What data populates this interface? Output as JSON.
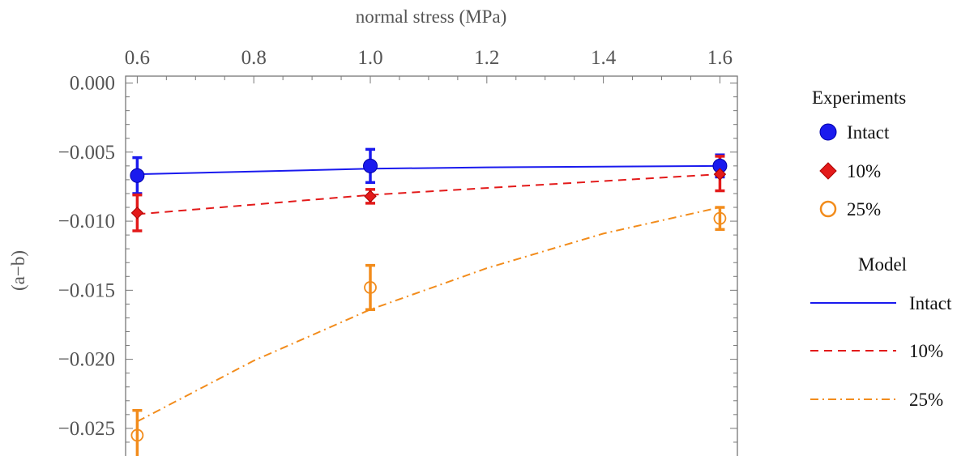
{
  "chart_data": {
    "type": "scatter",
    "xlabel": "normal stress (MPa)",
    "ylabel": "(a−b)",
    "xlim": [
      0.58,
      1.63
    ],
    "ylim": [
      -0.027,
      0.0005
    ],
    "x_ticks": [
      0.6,
      0.8,
      1.0,
      1.2,
      1.4,
      1.6
    ],
    "x_tick_labels": [
      "0.6",
      "0.8",
      "1.0",
      "1.2",
      "1.4",
      "1.6"
    ],
    "x_axis_position": "top",
    "y_ticks": [
      0.0,
      -0.005,
      -0.01,
      -0.015,
      -0.02,
      -0.025
    ],
    "y_tick_labels": [
      "0.000",
      "−0.005",
      "−0.010",
      "−0.015",
      "−0.020",
      "−0.025"
    ],
    "grid": false,
    "legend_position": "right",
    "legend": {
      "experiments_title": "Experiments",
      "model_title": "Model",
      "experiment_labels": [
        "Intact",
        "10%",
        "25%"
      ],
      "model_labels": [
        "Intact",
        "10%",
        "25%"
      ]
    },
    "series": [
      {
        "name": "Intact",
        "group": "Experiments",
        "marker": "filled-circle",
        "color": "#1a1aee",
        "x": [
          0.6,
          1.0,
          1.6
        ],
        "y": [
          -0.0067,
          -0.006,
          -0.006
        ],
        "err_low": [
          -0.008,
          -0.0072,
          -0.0068
        ],
        "err_high": [
          -0.0054,
          -0.0048,
          -0.0052
        ]
      },
      {
        "name": "10%",
        "group": "Experiments",
        "marker": "filled-diamond",
        "color": "#e31a1a",
        "x": [
          0.6,
          1.0,
          1.6
        ],
        "y": [
          -0.0094,
          -0.0082,
          -0.0066
        ],
        "err_low": [
          -0.0107,
          -0.0087,
          -0.0078
        ],
        "err_high": [
          -0.0081,
          -0.0077,
          -0.0053
        ]
      },
      {
        "name": "25%",
        "group": "Experiments",
        "marker": "open-circle",
        "color": "#f28c1c",
        "x": [
          0.6,
          1.0,
          1.6
        ],
        "y": [
          -0.0255,
          -0.0148,
          -0.0098
        ],
        "err_low": [
          -0.0272,
          -0.0164,
          -0.0106
        ],
        "err_high": [
          -0.0237,
          -0.0132,
          -0.009
        ]
      },
      {
        "name": "Intact",
        "group": "Model",
        "line_style": "solid",
        "color": "#1a1aee",
        "x": [
          0.6,
          0.8,
          1.0,
          1.2,
          1.4,
          1.6
        ],
        "y": [
          -0.0066,
          -0.0064,
          -0.0062,
          -0.0061,
          -0.00605,
          -0.006
        ]
      },
      {
        "name": "10%",
        "group": "Model",
        "line_style": "dashed",
        "color": "#e31a1a",
        "x": [
          0.6,
          0.8,
          1.0,
          1.2,
          1.4,
          1.6
        ],
        "y": [
          -0.0095,
          -0.0088,
          -0.0081,
          -0.0076,
          -0.0071,
          -0.0066
        ]
      },
      {
        "name": "25%",
        "group": "Model",
        "line_style": "dash-dot",
        "color": "#f28c1c",
        "x": [
          0.6,
          0.8,
          1.0,
          1.2,
          1.4,
          1.6
        ],
        "y": [
          -0.0245,
          -0.0201,
          -0.0164,
          -0.0134,
          -0.0109,
          -0.009
        ]
      }
    ]
  }
}
